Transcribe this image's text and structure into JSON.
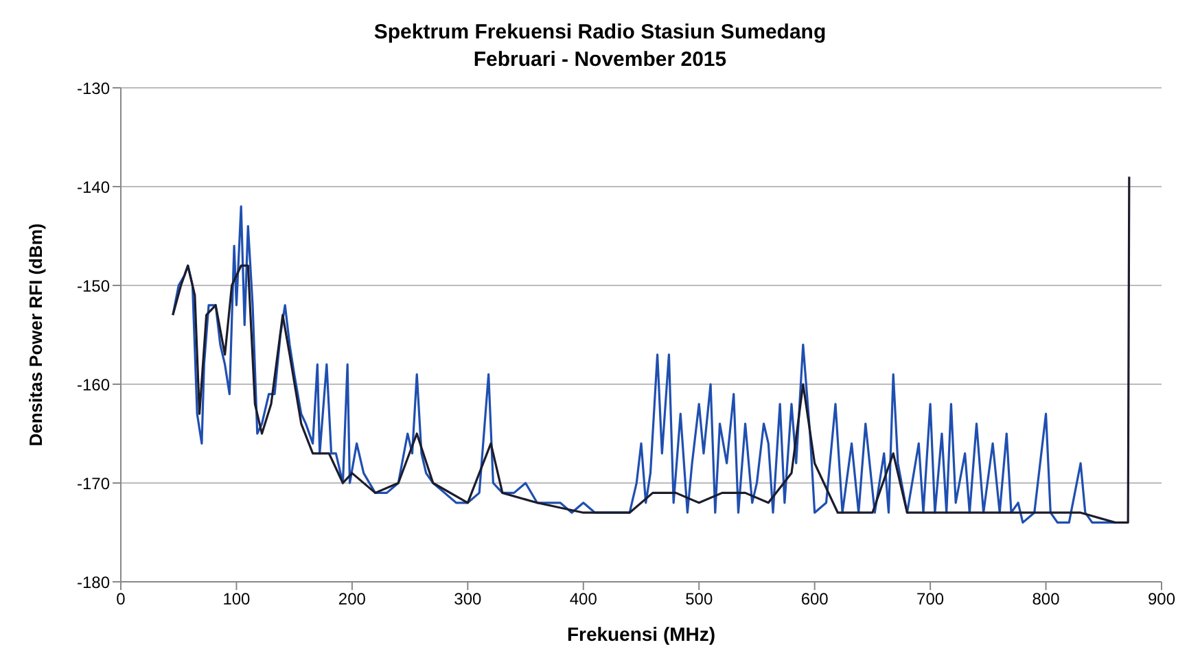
{
  "chart_data": {
    "type": "line",
    "title": "Spektrum Frekuensi Radio Stasiun Sumedang",
    "subtitle": "Februari - November 2015",
    "xlabel": "Frekuensi (MHz)",
    "ylabel": "Densitas Power RFI (dBm)",
    "xlim": [
      0,
      900
    ],
    "xticks": [
      0,
      100,
      200,
      300,
      400,
      500,
      600,
      700,
      800,
      900
    ],
    "ylim": [
      -180,
      -130
    ],
    "yticks": [
      -180,
      -170,
      -160,
      -150,
      -140,
      -130
    ],
    "grid": "y",
    "legend": false,
    "marker": "none",
    "line_style": "solid",
    "series": [
      {
        "color": "#1f4fb0",
        "x": [
          45,
          50,
          55,
          58,
          62,
          66,
          70,
          72,
          76,
          82,
          86,
          90,
          94,
          98,
          100,
          104,
          107,
          110,
          114,
          118,
          122,
          128,
          133,
          138,
          142,
          146,
          150,
          156,
          160,
          166,
          170,
          172,
          178,
          182,
          186,
          192,
          196,
          198,
          204,
          210,
          220,
          230,
          240,
          248,
          252,
          256,
          260,
          264,
          270,
          280,
          290,
          300,
          310,
          318,
          322,
          330,
          340,
          350,
          360,
          370,
          380,
          390,
          400,
          410,
          420,
          430,
          440,
          446,
          450,
          454,
          458,
          464,
          468,
          474,
          478,
          484,
          490,
          494,
          500,
          504,
          510,
          514,
          518,
          524,
          530,
          534,
          540,
          546,
          550,
          556,
          560,
          564,
          570,
          574,
          580,
          584,
          590,
          596,
          600,
          610,
          618,
          624,
          632,
          638,
          644,
          652,
          660,
          664,
          668,
          672,
          680,
          690,
          694,
          700,
          704,
          710,
          714,
          718,
          722,
          730,
          734,
          740,
          746,
          754,
          760,
          766,
          770,
          776,
          780,
          790,
          800,
          804,
          810,
          820,
          830,
          834,
          840,
          850,
          860
        ],
        "values": [
          -153,
          -150,
          -149,
          -148,
          -150,
          -163,
          -166,
          -158,
          -152,
          -152,
          -156,
          -158,
          -161,
          -146,
          -152,
          -142,
          -154,
          -144,
          -152,
          -165,
          -164,
          -161,
          -161,
          -155,
          -152,
          -156,
          -159,
          -163,
          -164,
          -166,
          -158,
          -167,
          -158,
          -167,
          -167,
          -170,
          -158,
          -170,
          -166,
          -169,
          -171,
          -171,
          -170,
          -165,
          -167,
          -159,
          -167,
          -169,
          -170,
          -171,
          -172,
          -172,
          -171,
          -159,
          -170,
          -171,
          -171,
          -170,
          -172,
          -172,
          -172,
          -173,
          -172,
          -173,
          -173,
          -173,
          -173,
          -170,
          -166,
          -172,
          -169,
          -157,
          -167,
          -157,
          -172,
          -163,
          -173,
          -168,
          -162,
          -167,
          -160,
          -173,
          -164,
          -168,
          -161,
          -173,
          -164,
          -172,
          -170,
          -164,
          -166,
          -173,
          -162,
          -172,
          -162,
          -168,
          -156,
          -165,
          -173,
          -172,
          -162,
          -173,
          -166,
          -173,
          -164,
          -173,
          -167,
          -173,
          -159,
          -168,
          -173,
          -166,
          -173,
          -162,
          -173,
          -165,
          -173,
          -162,
          -172,
          -167,
          -173,
          -164,
          -173,
          -166,
          -173,
          -165,
          -173,
          -172,
          -174,
          -173,
          -163,
          -173,
          -174,
          -174,
          -168,
          -173,
          -174,
          -174,
          -174
        ]
      },
      {
        "color": "#1c1c2c",
        "x": [
          45,
          52,
          58,
          64,
          68,
          74,
          82,
          90,
          96,
          104,
          110,
          116,
          122,
          130,
          140,
          146,
          156,
          166,
          180,
          192,
          200,
          220,
          240,
          256,
          270,
          300,
          320,
          330,
          360,
          400,
          440,
          460,
          480,
          500,
          520,
          540,
          560,
          580,
          590,
          600,
          620,
          650,
          668,
          680,
          720,
          760,
          800,
          830,
          860,
          865,
          871,
          872
        ],
        "values": [
          -153,
          -150,
          -148,
          -151,
          -163,
          -153,
          -152,
          -157,
          -150,
          -148,
          -148,
          -162,
          -165,
          -162,
          -153,
          -157,
          -164,
          -167,
          -167,
          -170,
          -169,
          -171,
          -170,
          -165,
          -170,
          -172,
          -166,
          -171,
          -172,
          -173,
          -173,
          -171,
          -171,
          -172,
          -171,
          -171,
          -172,
          -169,
          -160,
          -168,
          -173,
          -173,
          -167,
          -173,
          -173,
          -173,
          -173,
          -173,
          -174,
          -174,
          -174,
          -139
        ]
      }
    ]
  }
}
